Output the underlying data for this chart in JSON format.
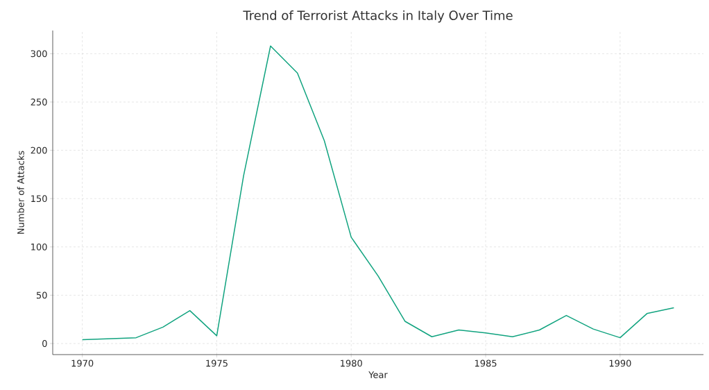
{
  "chart_data": {
    "type": "line",
    "title": "Trend of Terrorist Attacks in Italy Over Time",
    "xlabel": "Year",
    "ylabel": "Number of Attacks",
    "x": [
      1970,
      1972,
      1973,
      1974,
      1975,
      1976,
      1977,
      1978,
      1979,
      1980,
      1981,
      1982,
      1983,
      1984,
      1985,
      1986,
      1987,
      1988,
      1989,
      1990,
      1991,
      1992
    ],
    "series": [
      {
        "color": "#10a37f",
        "values": [
          4,
          6,
          17,
          34,
          8,
          174,
          308,
          280,
          210,
          110,
          70,
          23,
          7,
          14,
          11,
          7,
          14,
          29,
          15,
          6,
          31,
          37
        ]
      }
    ],
    "xlim": [
      1968.9,
      1993.1
    ],
    "ylim": [
      -11.5,
      324
    ],
    "xticks": [
      1970,
      1975,
      1980,
      1985,
      1990
    ],
    "yticks": [
      0,
      50,
      100,
      150,
      200,
      250,
      300
    ],
    "grid": true,
    "line_style": "solid",
    "marker": "none"
  }
}
